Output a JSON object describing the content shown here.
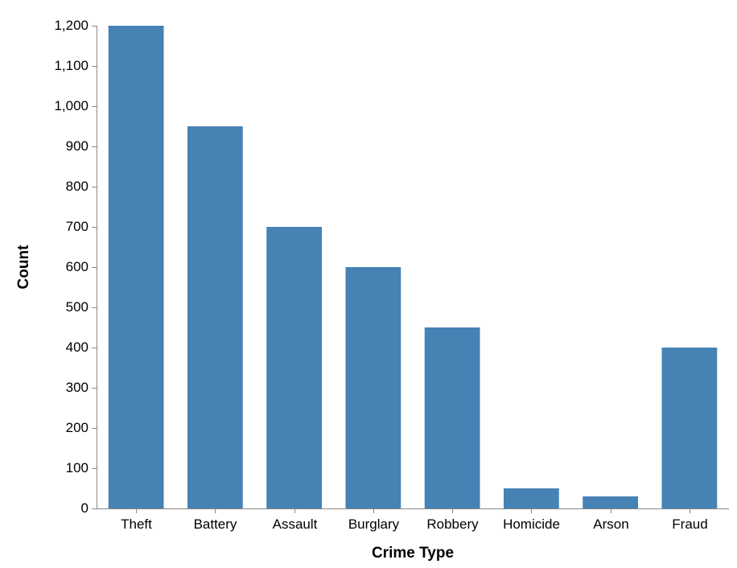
{
  "chart_data": {
    "type": "bar",
    "title": "",
    "xlabel": "Crime Type",
    "ylabel": "Count",
    "categories": [
      "Theft",
      "Battery",
      "Assault",
      "Burglary",
      "Robbery",
      "Homicide",
      "Arson",
      "Fraud"
    ],
    "values": [
      1200,
      950,
      700,
      600,
      450,
      50,
      30,
      400
    ],
    "ylim": [
      0,
      1200
    ],
    "yticks": [
      0,
      100,
      200,
      300,
      400,
      500,
      600,
      700,
      800,
      900,
      1000,
      1100,
      1200
    ],
    "ytick_labels": [
      "0",
      "100",
      "200",
      "300",
      "400",
      "500",
      "600",
      "700",
      "800",
      "900",
      "1,000",
      "1,100",
      "1,200"
    ],
    "grid": false,
    "bar_color": "#4682b4",
    "axis_color": "#888888"
  }
}
